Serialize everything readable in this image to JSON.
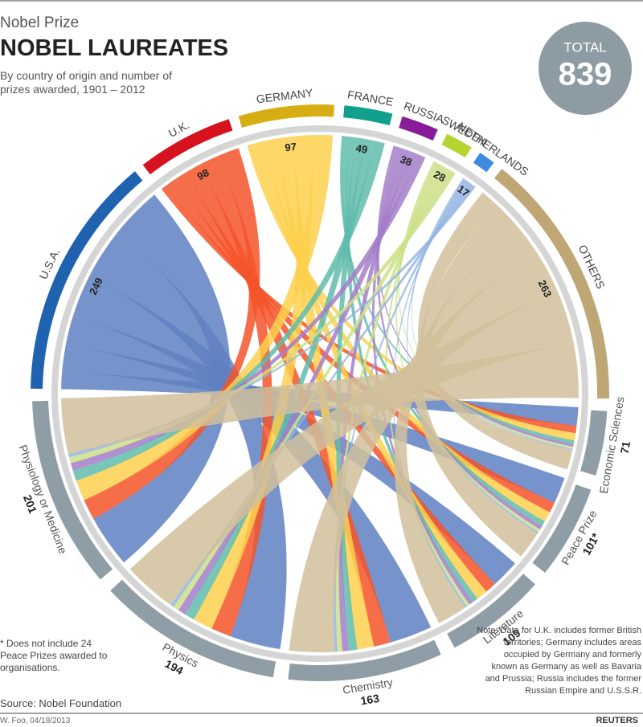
{
  "chart_data": {
    "type": "chord",
    "supertitle": "Nobel Prize",
    "title": "NOBEL LAUREATES",
    "subtitle": "By country of origin and number of prizes awarded, 1901 – 2012",
    "total_label": "TOTAL",
    "total": 839,
    "countries": {
      "names": [
        "U.S.A.",
        "U.K.",
        "GERMANY",
        "FRANCE",
        "RUSSIA",
        "SWEDEN",
        "NETHERLANDS",
        "OTHERS"
      ],
      "values": [
        249,
        98,
        97,
        49,
        38,
        28,
        17,
        263
      ],
      "colors": [
        "#1f63b0",
        "#d6121e",
        "#d6ad12",
        "#119f8e",
        "#8a1b9b",
        "#b3d431",
        "#3d8ae0",
        "#bfa775"
      ],
      "ribbon_colors": [
        "#5f80c2",
        "#f4542a",
        "#fdd04c",
        "#5fbcac",
        "#a57ec9",
        "#cde187",
        "#94b5e3",
        "#d1c09b"
      ]
    },
    "prizes": {
      "names": [
        "Economic Sciences",
        "Peace Prize",
        "Literature",
        "Chemistry",
        "Physics",
        "Physiology or Medicine"
      ],
      "values": [
        71,
        101,
        109,
        163,
        194,
        201
      ],
      "value_labels": [
        "71",
        "101*",
        "109",
        "163",
        "194",
        "201"
      ],
      "color": "#8f9ea6"
    },
    "footnote": "* Does not include 24 Peace Prizes awarded to organisations.",
    "note": "Note: Data for U.K. includes former British territories; Germany includes areas occupied by Germany and formerly known as Germany as well as Bavaria and Prussia; Russia includes the former Russian Empire and U.S.S.R.",
    "source": "Source: Nobel Foundation",
    "credit": "W. Foo, 04/18/2013",
    "brand": "REUTERS"
  }
}
